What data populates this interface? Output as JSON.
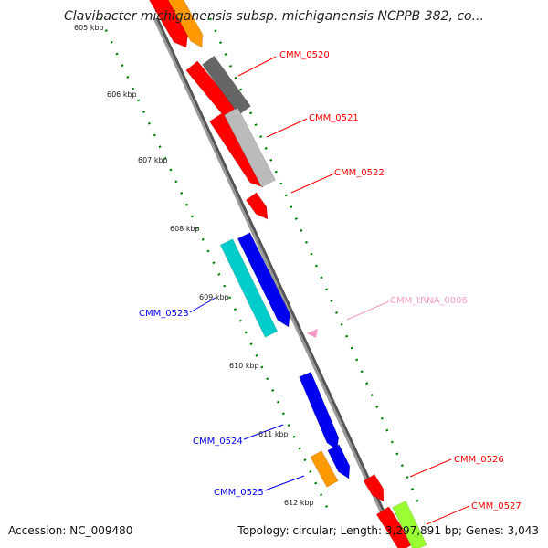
{
  "title": "Clavibacter michiganensis subsp. michiganensis NCPPB 382, co...",
  "accession": "Accession: NC_009480",
  "summary": "Topology: circular; Length: 3,297,891 bp; Genes: 3,043",
  "colors": {
    "red": "#ff0000",
    "orange": "#ff9900",
    "dark_gray": "#666666",
    "light_gray": "#bbbbbb",
    "blue": "#0000ee",
    "cyan": "#00cccc",
    "lime": "#99ff33",
    "pink": "#f49ac2",
    "backbone": "#808080",
    "scale": "#008000"
  },
  "scale_labels": [
    "605 kbp",
    "606 kbp",
    "607 kbp",
    "608 kbp",
    "609 kbp",
    "610 kbp",
    "611 kbp",
    "612 kbp"
  ],
  "gene_labels": [
    {
      "text": "CMM_0520",
      "color": "red"
    },
    {
      "text": "CMM_0521",
      "color": "red"
    },
    {
      "text": "CMM_0522",
      "color": "red"
    },
    {
      "text": "CMM_tRNA_0006",
      "color": "pink"
    },
    {
      "text": "CMM_0523",
      "color": "blue"
    },
    {
      "text": "CMM_0524",
      "color": "blue"
    },
    {
      "text": "CMM_0525",
      "color": "blue"
    },
    {
      "text": "CMM_0526",
      "color": "red"
    },
    {
      "text": "CMM_0527",
      "color": "red"
    }
  ]
}
